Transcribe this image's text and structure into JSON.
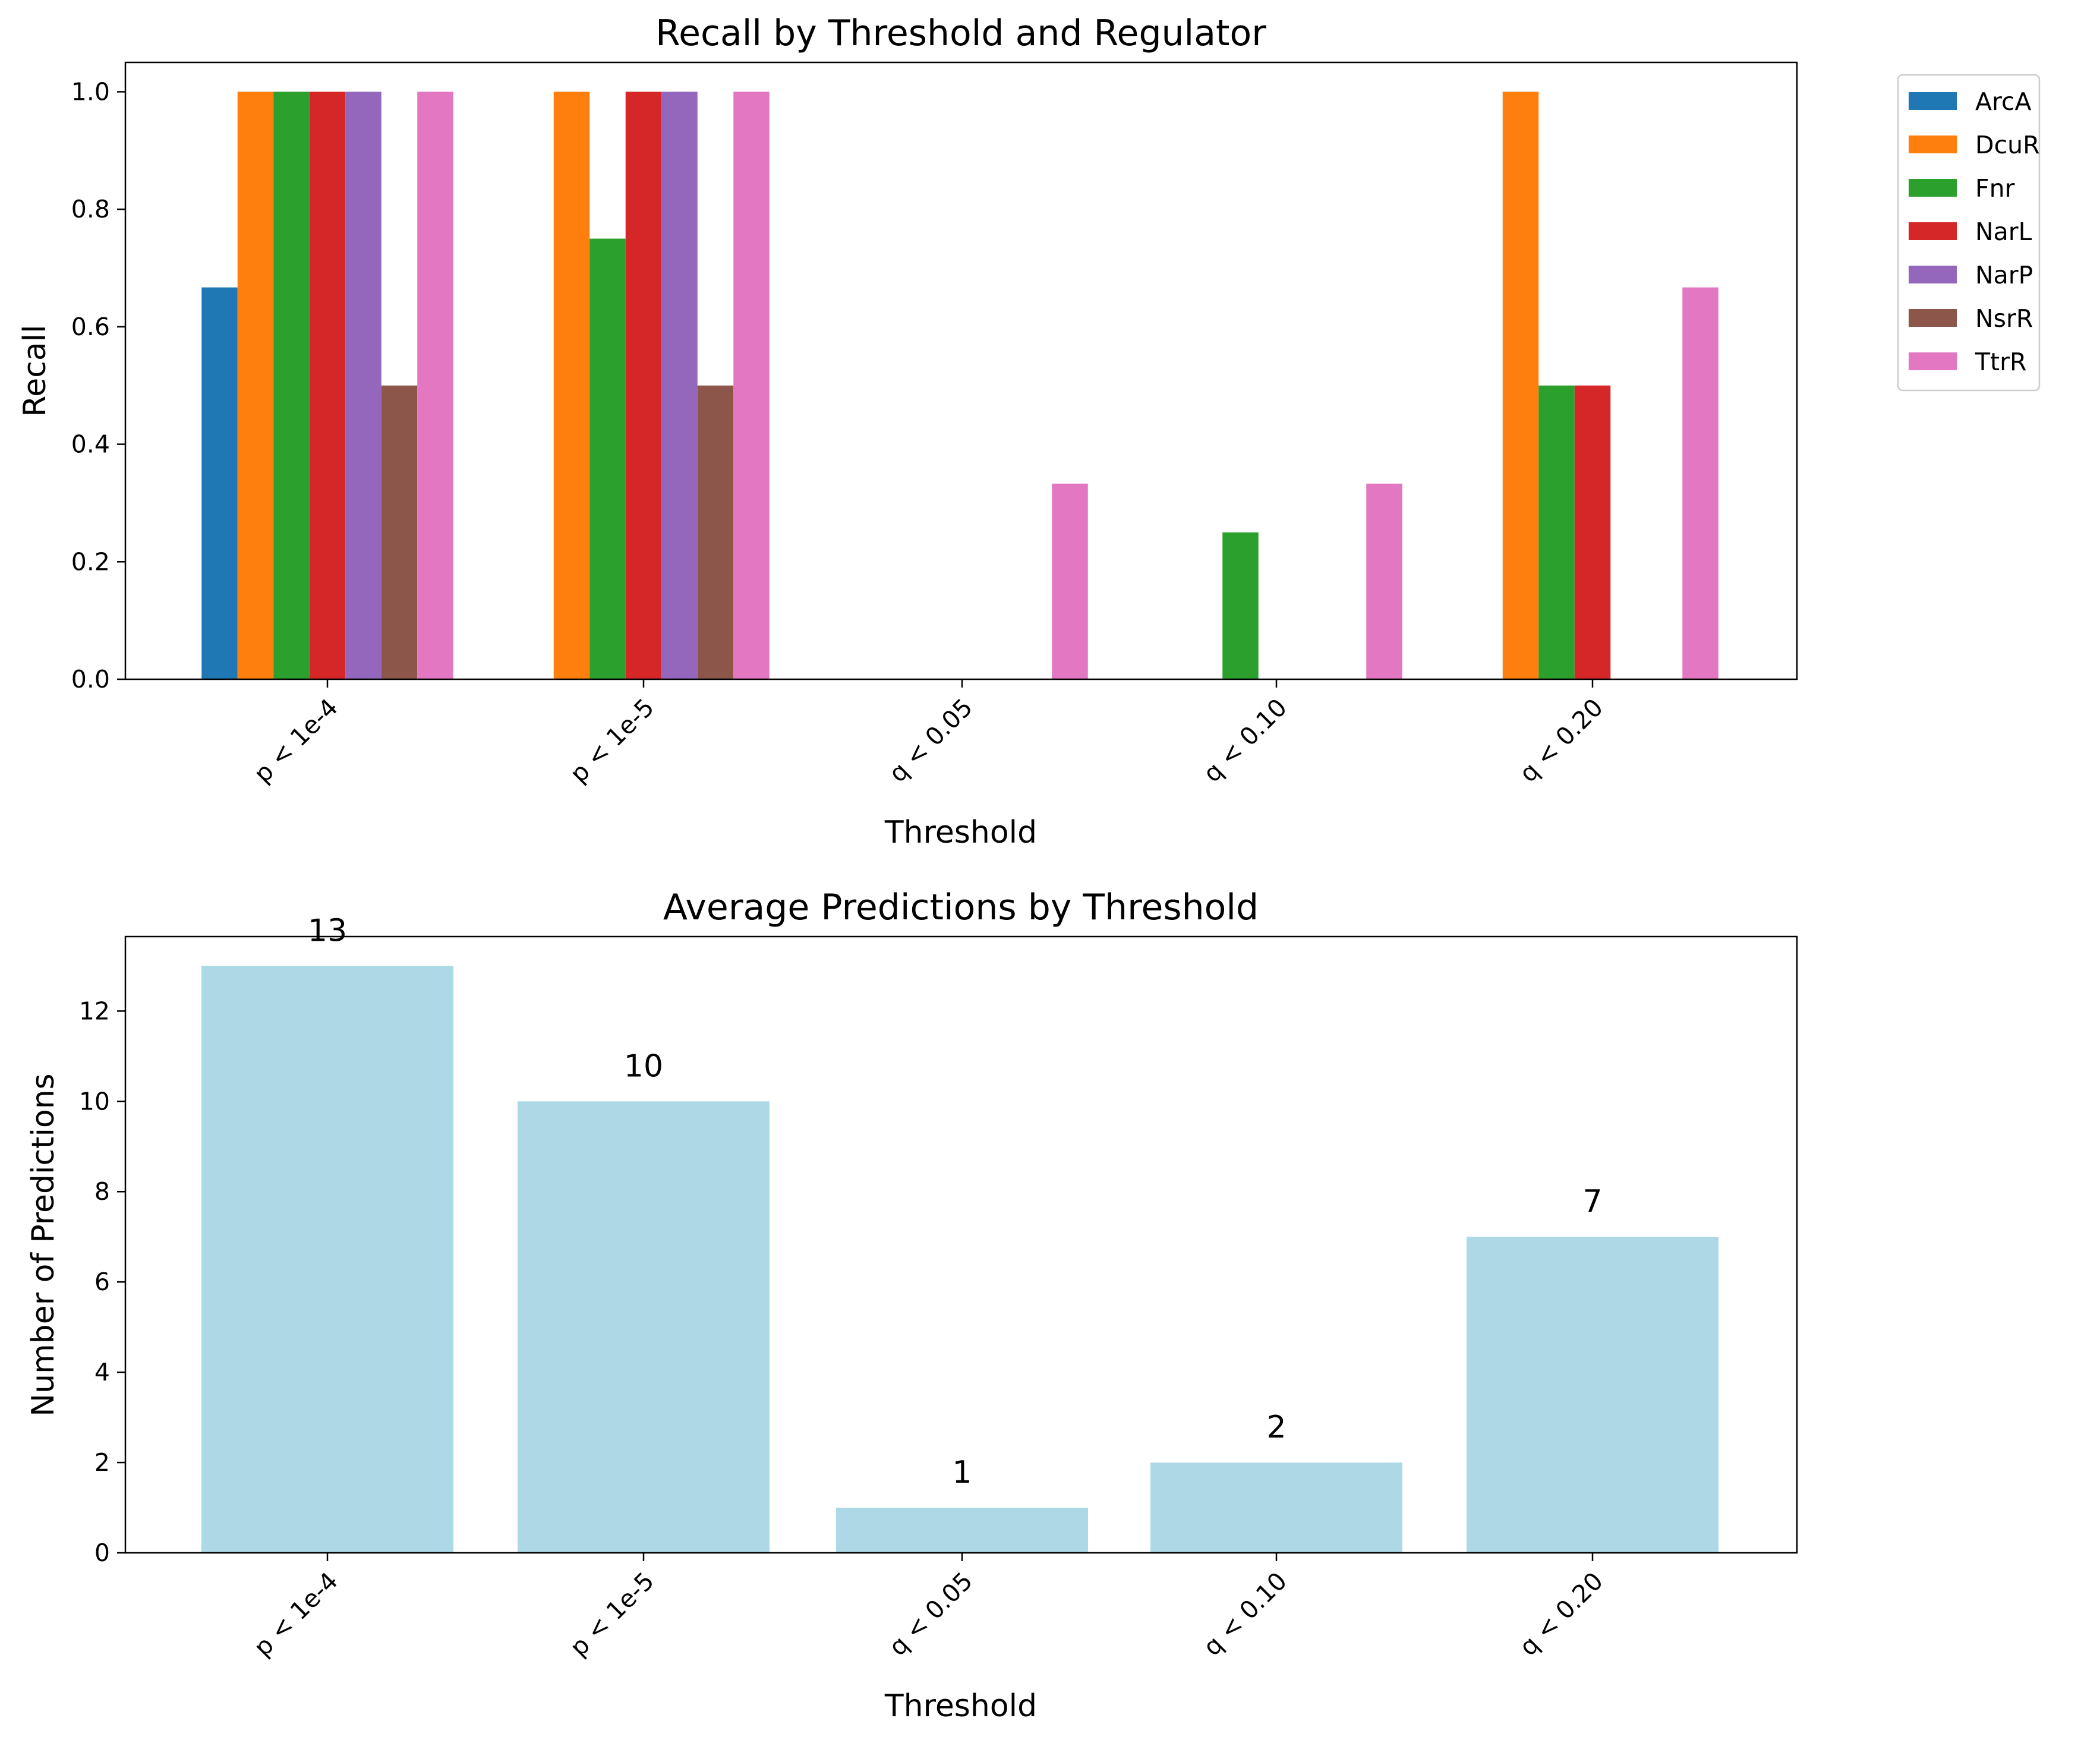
{
  "chart_data": [
    {
      "type": "bar",
      "title": "Recall by Threshold and Regulator",
      "xlabel": "Threshold",
      "ylabel": "Recall",
      "categories": [
        "p < 1e-4",
        "p < 1e-5",
        "q < 0.05",
        "q < 0.10",
        "q < 0.20"
      ],
      "ylim": [
        0,
        1.05
      ],
      "yticks": [
        "0.0",
        "0.2",
        "0.4",
        "0.6",
        "0.8",
        "1.0"
      ],
      "grid": false,
      "legend_position": "outside-top-right",
      "series": [
        {
          "name": "ArcA",
          "color": "#1f77b4",
          "values": [
            0.667,
            0,
            0,
            0,
            0
          ]
        },
        {
          "name": "DcuR",
          "color": "#ff7f0e",
          "values": [
            1.0,
            1.0,
            0,
            0,
            1.0
          ]
        },
        {
          "name": "Fnr",
          "color": "#2ca02c",
          "values": [
            1.0,
            0.75,
            0,
            0.25,
            0.5
          ]
        },
        {
          "name": "NarL",
          "color": "#d62728",
          "values": [
            1.0,
            1.0,
            0,
            0,
            0.5
          ]
        },
        {
          "name": "NarP",
          "color": "#9467bd",
          "values": [
            1.0,
            1.0,
            0,
            0,
            0
          ]
        },
        {
          "name": "NsrR",
          "color": "#8c564b",
          "values": [
            0.5,
            0.5,
            0,
            0,
            0
          ]
        },
        {
          "name": "TtrR",
          "color": "#e377c2",
          "values": [
            1.0,
            1.0,
            0.333,
            0.333,
            0.667
          ]
        }
      ]
    },
    {
      "type": "bar",
      "title": "Average Predictions by Threshold",
      "xlabel": "Threshold",
      "ylabel": "Number of Predictions",
      "categories": [
        "p < 1e-4",
        "p < 1e-5",
        "q < 0.05",
        "q < 0.10",
        "q < 0.20"
      ],
      "values": [
        13,
        10,
        1,
        2,
        7
      ],
      "data_labels": [
        "13",
        "10",
        "1",
        "2",
        "7"
      ],
      "color": "#add8e6",
      "ylim": [
        0,
        13.65
      ],
      "yticks": [
        "0",
        "2",
        "4",
        "6",
        "8",
        "10",
        "12"
      ],
      "grid": false
    }
  ]
}
